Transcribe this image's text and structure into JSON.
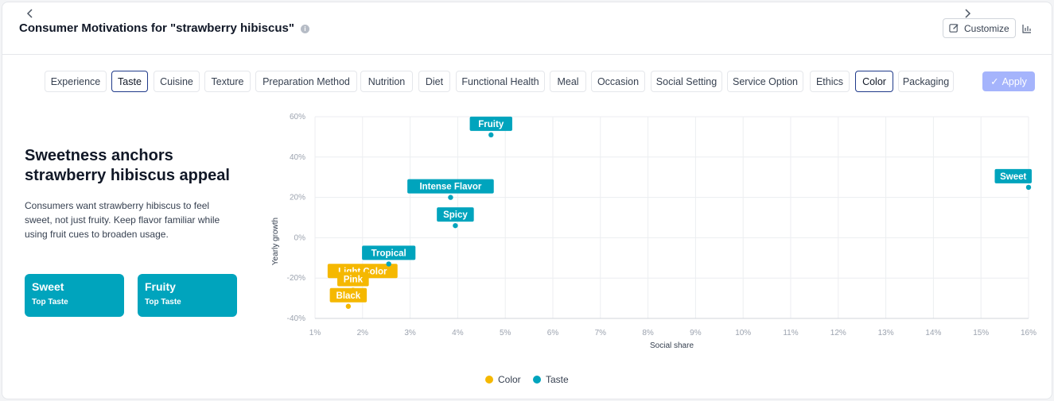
{
  "header": {
    "title": "Consumer Motivations for \"strawberry hibiscus\"",
    "customize_label": "Customize"
  },
  "tabs": [
    {
      "label": "Experience",
      "active": false
    },
    {
      "label": "Taste",
      "active": true
    },
    {
      "label": "Cuisine",
      "active": false
    },
    {
      "label": "Texture",
      "active": false
    },
    {
      "label": "Preparation Method",
      "active": false
    },
    {
      "label": "Nutrition",
      "active": false
    },
    {
      "label": "Diet",
      "active": false
    },
    {
      "label": "Functional Health",
      "active": false
    },
    {
      "label": "Meal",
      "active": false
    },
    {
      "label": "Occasion",
      "active": false
    },
    {
      "label": "Social Setting",
      "active": false
    },
    {
      "label": "Service Option",
      "active": false
    },
    {
      "label": "Ethics",
      "active": false
    },
    {
      "label": "Color",
      "active": true
    },
    {
      "label": "Packaging",
      "active": false
    }
  ],
  "apply_label": "Apply",
  "insight": {
    "headline": "Sweetness anchors strawberry hibiscus appeal",
    "description": "Consumers want strawberry hibiscus to feel sweet, not just fruity. Keep flavor familiar while using fruit cues to broaden usage.",
    "stats": [
      {
        "value": "Sweet",
        "label": "Top Taste"
      },
      {
        "value": "Fruity",
        "label": "Top Taste"
      }
    ]
  },
  "colors": {
    "Color": "#f5b800",
    "Taste": "#00a4bd",
    "accent": "#1f3a8a",
    "apply": "#a5b4fc"
  },
  "chart_data": {
    "type": "scatter",
    "xlabel": "Social share",
    "ylabel": "Yearly growth",
    "xlim": [
      1,
      16
    ],
    "ylim": [
      -40,
      60
    ],
    "xticks": [
      "1%",
      "2%",
      "3%",
      "4%",
      "5%",
      "6%",
      "7%",
      "8%",
      "9%",
      "10%",
      "11%",
      "12%",
      "13%",
      "14%",
      "15%",
      "16%"
    ],
    "yticks": [
      "60%",
      "40%",
      "20%",
      "0%",
      "-20%",
      "-40%"
    ],
    "grid": true,
    "legend": "bottom-center",
    "series": [
      {
        "name": "Color",
        "points": [
          {
            "label": "Light Color",
            "x": 2.0,
            "y": -22
          },
          {
            "label": "Pink",
            "x": 1.8,
            "y": -26
          },
          {
            "label": "Black",
            "x": 1.7,
            "y": -34
          }
        ]
      },
      {
        "name": "Taste",
        "points": [
          {
            "label": "Fruity",
            "x": 4.7,
            "y": 51
          },
          {
            "label": "Sweet",
            "x": 16.0,
            "y": 25
          },
          {
            "label": "Intense Flavor",
            "x": 3.85,
            "y": 20
          },
          {
            "label": "Spicy",
            "x": 3.95,
            "y": 6
          },
          {
            "label": "Tropical",
            "x": 2.55,
            "y": -13
          }
        ]
      }
    ]
  }
}
